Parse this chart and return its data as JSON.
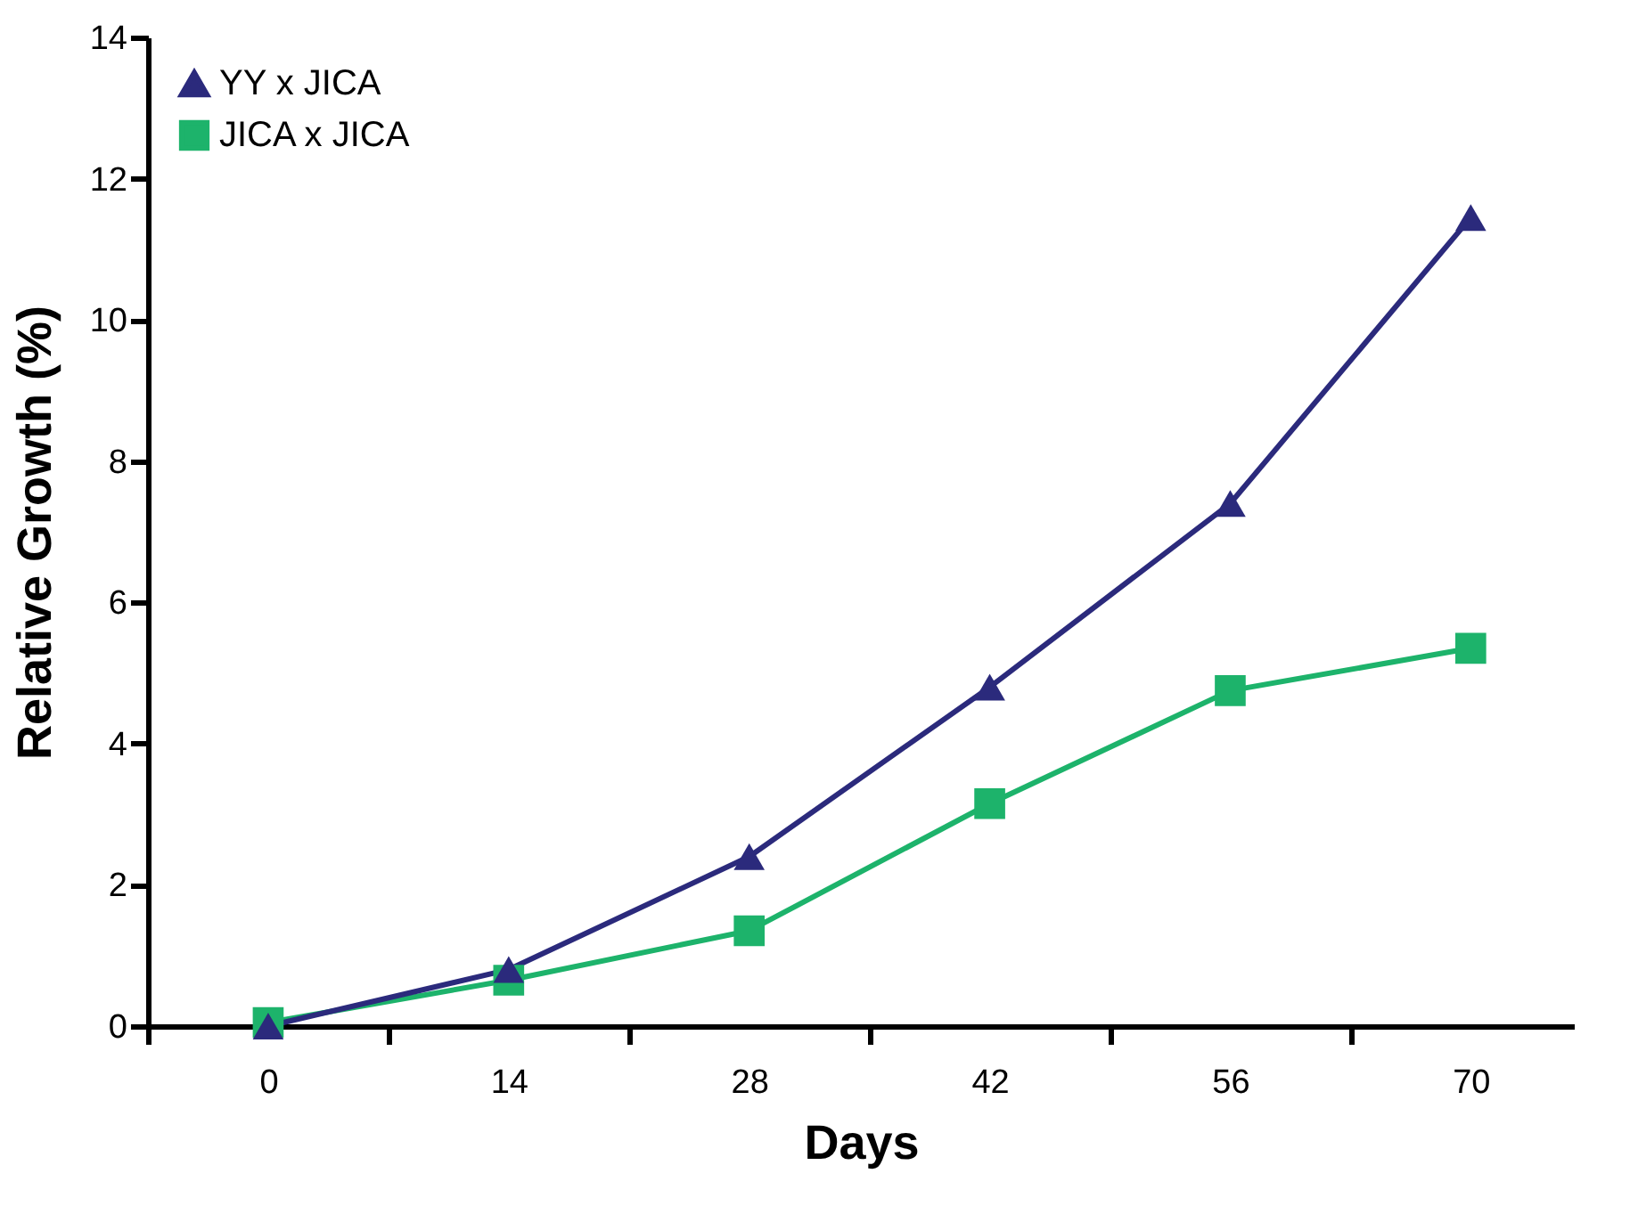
{
  "chart_data": {
    "type": "line",
    "xlabel": "Days",
    "ylabel": "Relative Growth (%)",
    "x": [
      0,
      14,
      28,
      42,
      56,
      70
    ],
    "series": [
      {
        "name": "YY x JICA",
        "color": "#2b2a7c",
        "marker": "triangle",
        "values": [
          0.0,
          0.8,
          2.4,
          4.8,
          7.4,
          11.45
        ]
      },
      {
        "name": "JICA x JICA",
        "color": "#1db36b",
        "marker": "square",
        "values": [
          0.05,
          0.65,
          1.35,
          3.15,
          4.75,
          5.35
        ]
      }
    ],
    "xlim": [
      -7,
      76
    ],
    "xticks": [
      {
        "value": -7,
        "label": null
      },
      0,
      {
        "value": 7,
        "label": null
      },
      14,
      {
        "value": 21,
        "label": null
      },
      28,
      {
        "value": 35,
        "label": null
      },
      42,
      {
        "value": 49,
        "label": null
      },
      56,
      {
        "value": 63,
        "label": null
      },
      70
    ],
    "ylim": [
      0,
      14
    ],
    "yticks": [
      0,
      2,
      4,
      6,
      8,
      10,
      12,
      14
    ],
    "grid": false,
    "legend": "top left",
    "line_style": "solid"
  }
}
